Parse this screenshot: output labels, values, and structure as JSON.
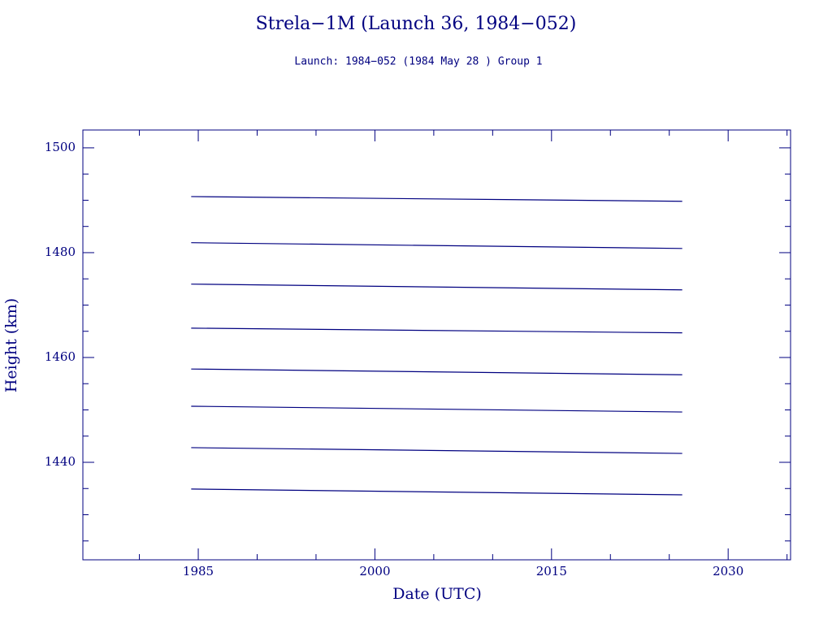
{
  "chart_data": {
    "type": "line",
    "title": "Strela−1M (Launch 36, 1984−052)",
    "subtitle": "Launch: 1984−052  (1984 May 28 )  Group 1",
    "x_label": "Date (UTC)",
    "y_label": "Height (km)",
    "x": [
      1984.4,
      2026.1
    ],
    "series": [
      {
        "color": "#000080",
        "values": [
          1490.7,
          1489.8
        ]
      },
      {
        "color": "#000080",
        "values": [
          1481.9,
          1480.8
        ]
      },
      {
        "color": "#000080",
        "values": [
          1474.0,
          1472.9
        ]
      },
      {
        "color": "#000080",
        "values": [
          1465.6,
          1464.7
        ]
      },
      {
        "color": "#000080",
        "values": [
          1457.8,
          1456.7
        ]
      },
      {
        "color": "#000080",
        "values": [
          1450.7,
          1449.6
        ]
      },
      {
        "color": "#000080",
        "values": [
          1442.8,
          1441.7
        ]
      },
      {
        "color": "#000080",
        "values": [
          1434.9,
          1433.8
        ]
      }
    ],
    "xlim": [
      1975.2,
      2035.3
    ],
    "ylim": [
      1421.4,
      1503.4
    ],
    "xticks": [
      1985,
      2000,
      2015,
      2030
    ],
    "xminorticks": [
      1980,
      1990,
      1995,
      2005,
      2010,
      2020,
      2025,
      2035
    ],
    "yticks": [
      1440,
      1460,
      1480,
      1500
    ],
    "yminorticks": [
      1425,
      1430,
      1435,
      1445,
      1450,
      1455,
      1465,
      1470,
      1475,
      1485,
      1490,
      1495
    ]
  }
}
